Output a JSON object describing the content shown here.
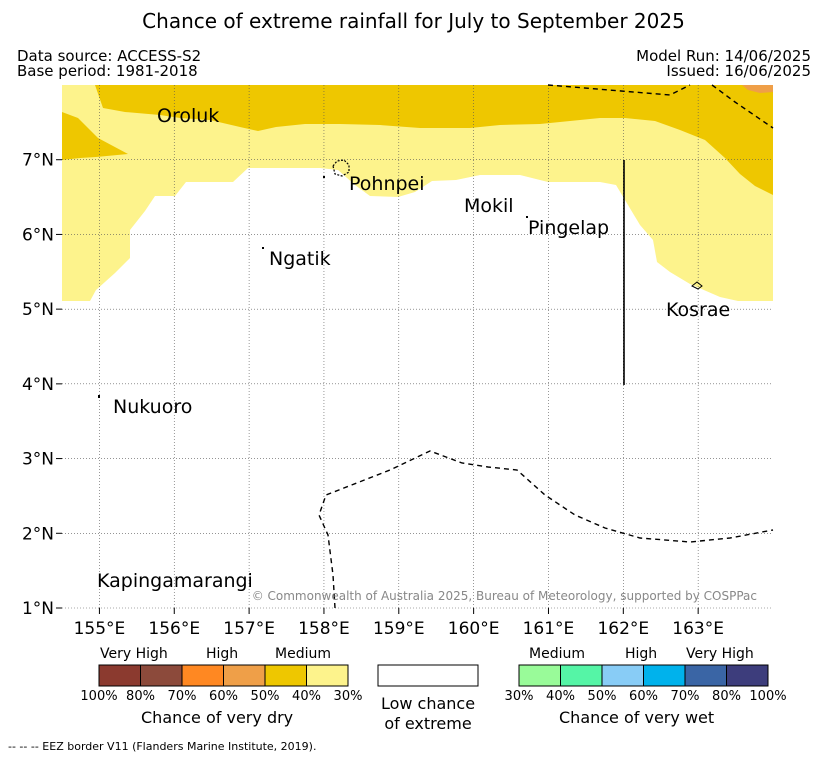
{
  "title": "Chance of extreme rainfall for July to September 2025",
  "header": {
    "data_source": "Data source: ACCESS-S2",
    "base_period": "Base period: 1981-2018",
    "model_run": "Model Run: 14/06/2025",
    "issued": "Issued: 16/06/2025"
  },
  "map": {
    "lon_range": [
      154.5,
      164.0
    ],
    "lat_range": [
      1.0,
      8.0
    ],
    "x_ticks": [
      "155°E",
      "156°E",
      "157°E",
      "158°E",
      "159°E",
      "160°E",
      "161°E",
      "162°E",
      "163°E"
    ],
    "y_ticks": [
      "1°N",
      "2°N",
      "3°N",
      "4°N",
      "5°N",
      "6°N",
      "7°N"
    ],
    "grid": "dotted",
    "places": [
      {
        "name": "Oroluk",
        "lon": 155.7,
        "lat": 7.6
      },
      {
        "name": "Pohnpei",
        "lon": 158.3,
        "lat": 6.9
      },
      {
        "name": "Mokil",
        "lon": 159.8,
        "lat": 6.4
      },
      {
        "name": "Pingelap",
        "lon": 160.7,
        "lat": 6.1
      },
      {
        "name": "Ngatik",
        "lon": 157.25,
        "lat": 5.75
      },
      {
        "name": "Kosrae",
        "lon": 163.0,
        "lat": 5.3
      },
      {
        "name": "Nukuoro",
        "lon": 155.2,
        "lat": 3.8
      },
      {
        "name": "Kapingamarangi",
        "lon": 154.95,
        "lat": 1.35
      }
    ],
    "copyright": "© Commonwealth of Australia 2025, Bureau of Meteorology, supported by COSPPac"
  },
  "legend": {
    "dry": {
      "categories": [
        "Very High",
        "High",
        "Medium"
      ],
      "colors": [
        "#8b3a2f",
        "#8c4a3b",
        "#ff8822",
        "#ef9f48",
        "#eec700",
        "#fdf38c"
      ],
      "ticks": [
        "100%",
        "80%",
        "70%",
        "60%",
        "50%",
        "40%",
        "30%"
      ],
      "title": "Chance of very dry"
    },
    "low": {
      "line1": "Low chance",
      "line2": "of extreme"
    },
    "wet": {
      "categories": [
        "Medium",
        "High",
        "Very High"
      ],
      "colors": [
        "#99fb99",
        "#55f5a6",
        "#88ccf6",
        "#00b2ec",
        "#3a65a5",
        "#3d3d7c"
      ],
      "ticks": [
        "30%",
        "40%",
        "50%",
        "60%",
        "70%",
        "80%",
        "100%"
      ],
      "title": "Chance of very wet"
    }
  },
  "footnote": "-- -- -- EEZ border V11 (Flanders Marine Institute, 2019)."
}
